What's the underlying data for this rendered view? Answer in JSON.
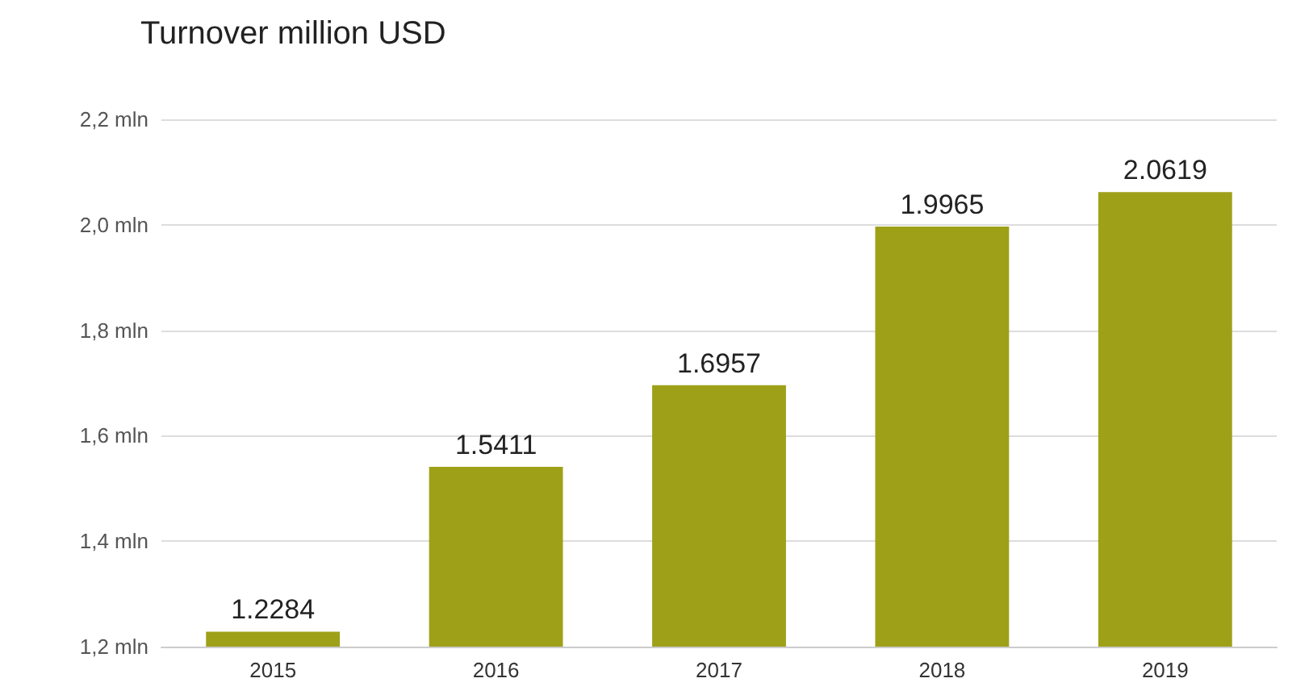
{
  "chart_data": {
    "type": "bar",
    "title": "Turnover million USD",
    "categories": [
      "2015",
      "2016",
      "2017",
      "2018",
      "2019"
    ],
    "values": [
      1.2284,
      1.5411,
      1.6957,
      1.9965,
      2.0619
    ],
    "color": "#9ea118",
    "ylim": [
      1.2,
      2.2
    ],
    "yticks": [
      {
        "value": 1.2,
        "label": "1,2 mln"
      },
      {
        "value": 1.4,
        "label": "1,4 mln"
      },
      {
        "value": 1.6,
        "label": "1,6 mln"
      },
      {
        "value": 1.8,
        "label": "1,8 mln"
      },
      {
        "value": 2.0,
        "label": "2,0 mln"
      },
      {
        "value": 2.2,
        "label": "2,2 mln"
      }
    ],
    "grid": "y",
    "data_labels": true
  }
}
